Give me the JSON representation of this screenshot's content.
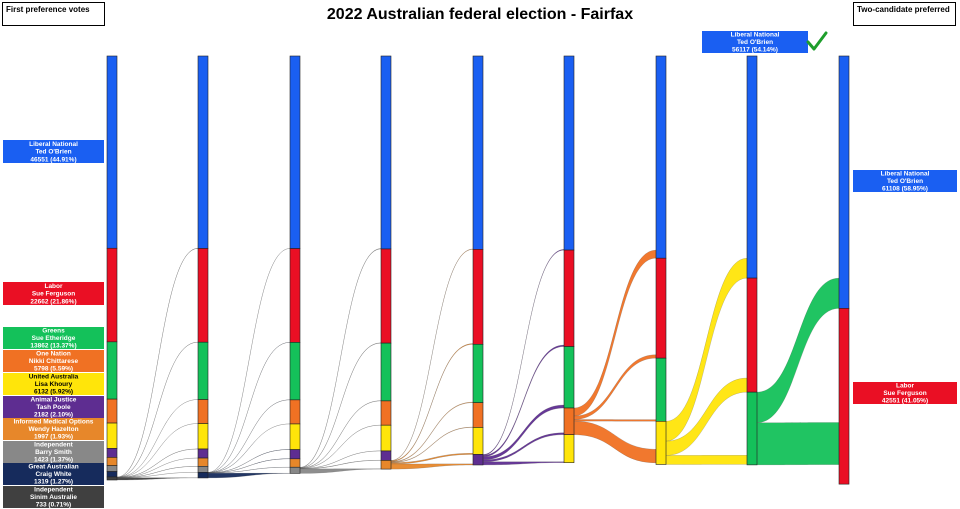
{
  "header": {
    "title": "2022 Australian federal election - Fairfax",
    "left_label": "First preference votes",
    "right_label": "Two-candidate preferred"
  },
  "colors": {
    "Liberal National": "#1a5ff2",
    "Labor": "#ea0f24",
    "Greens": "#14c15a",
    "One Nation": "#f07123",
    "United Australia": "#ffe50a",
    "Animal Justice": "#5e2d91",
    "Informed Medical Options": "#e7872a",
    "Independent (Barry Smith)": "#888888",
    "Great Australian": "#162b5c",
    "Independent (Sinim Australie)": "#404040"
  },
  "winner_mark": "check-icon",
  "chart_data": {
    "type": "sankey",
    "title": "2022 Australian federal election - Fairfax",
    "first_preferences": [
      {
        "party": "Liberal National",
        "candidate": "Ted O'Brien",
        "votes": 46551,
        "pct": "44.91%"
      },
      {
        "party": "Labor",
        "candidate": "Sue Ferguson",
        "votes": 22662,
        "pct": "21.86%"
      },
      {
        "party": "Greens",
        "candidate": "Sue Etheridge",
        "votes": 13862,
        "pct": "13.37%"
      },
      {
        "party": "One Nation",
        "candidate": "Nikki Chittarese",
        "votes": 5798,
        "pct": "5.59%"
      },
      {
        "party": "United Australia",
        "candidate": "Lisa Khoury",
        "votes": 6132,
        "pct": "5.92%"
      },
      {
        "party": "Animal Justice",
        "candidate": "Tash Poole",
        "votes": 2182,
        "pct": "2.10%"
      },
      {
        "party": "Informed Medical Options",
        "candidate": "Wendy Hazelton",
        "votes": 1997,
        "pct": "1.93%"
      },
      {
        "party": "Independent",
        "candidate": "Barry Smith",
        "votes": 1423,
        "pct": "1.37%"
      },
      {
        "party": "Great Australian",
        "candidate": "Craig White",
        "votes": 1319,
        "pct": "1.27%"
      },
      {
        "party": "Independent",
        "candidate": "Sinim Australie",
        "votes": 733,
        "pct": "0.71%"
      }
    ],
    "first_pref_labels": [
      [
        "Liberal National",
        "Ted O'Brien",
        "46551 (44.91%)"
      ],
      [
        "Labor",
        "Sue Ferguson",
        "22662 (21.86%)"
      ],
      [
        "Greens",
        "Sue Etheridge",
        "13862 (13.37%)"
      ],
      [
        "One Nation",
        "Nikki Chittarese",
        "5798 (5.59%)"
      ],
      [
        "United Australia",
        "Lisa Khoury",
        "6132 (5.92%)"
      ],
      [
        "Animal Justice",
        "Tash Poole",
        "2182 (2.10%)"
      ],
      [
        "Informed Medical Options",
        "Wendy Hazelton",
        "1997 (1.93%)"
      ],
      [
        "Independent",
        "Barry Smith",
        "1423 (1.37%)"
      ],
      [
        "Great Australian",
        "Craig White",
        "1319 (1.27%)"
      ],
      [
        "Independent",
        "Sinim Australie",
        "733 (0.71%)"
      ]
    ],
    "winning_count_label": [
      "Liberal National",
      "Ted O'Brien",
      "56117 (54.14%)"
    ],
    "two_candidate_preferred": [
      {
        "party": "Liberal National",
        "candidate": "Ted O'Brien",
        "votes": 61108,
        "pct": "58.95%"
      },
      {
        "party": "Labor",
        "candidate": "Sue Ferguson",
        "votes": 42551,
        "pct": "41.05%"
      }
    ],
    "tcp_labels": [
      [
        "Liberal National",
        "Ted O'Brien",
        "61108 (58.95%)"
      ],
      [
        "Labor",
        "Sue Ferguson",
        "42551 (41.05%)"
      ]
    ],
    "elimination_order": [
      "Sinim Australie",
      "Great Australian",
      "Barry Smith",
      "Informed Medical Options",
      "Animal Justice",
      "One Nation",
      "United Australia",
      "Greens"
    ]
  }
}
